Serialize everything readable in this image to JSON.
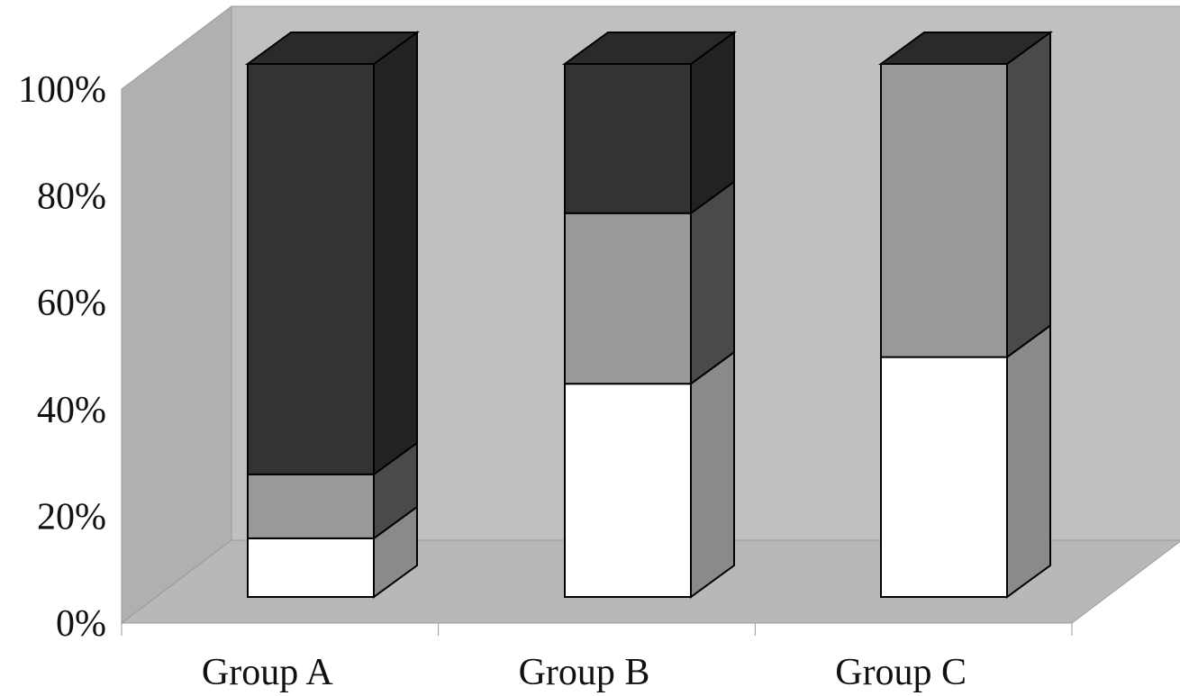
{
  "chart_data": {
    "type": "bar",
    "stacked": true,
    "three_d": true,
    "categories": [
      "Group A",
      "Group B",
      "Group C"
    ],
    "series": [
      {
        "color": "#ffffff",
        "values": [
          11,
          40,
          45
        ]
      },
      {
        "color": "#999999",
        "values": [
          12,
          32,
          55
        ]
      },
      {
        "color": "#333333",
        "values": [
          77,
          28,
          0
        ]
      }
    ],
    "y_ticks": [
      "0%",
      "20%",
      "40%",
      "60%",
      "80%",
      "100%"
    ],
    "ylim": [
      0,
      100
    ],
    "title": "",
    "xlabel": "",
    "ylabel": "",
    "legend": "none",
    "grid": false,
    "colors": {
      "back_wall": "#c0c0c0",
      "floor": "#b8b8b8",
      "side_wall": "#b0b0b0",
      "outline": "#000000"
    }
  }
}
